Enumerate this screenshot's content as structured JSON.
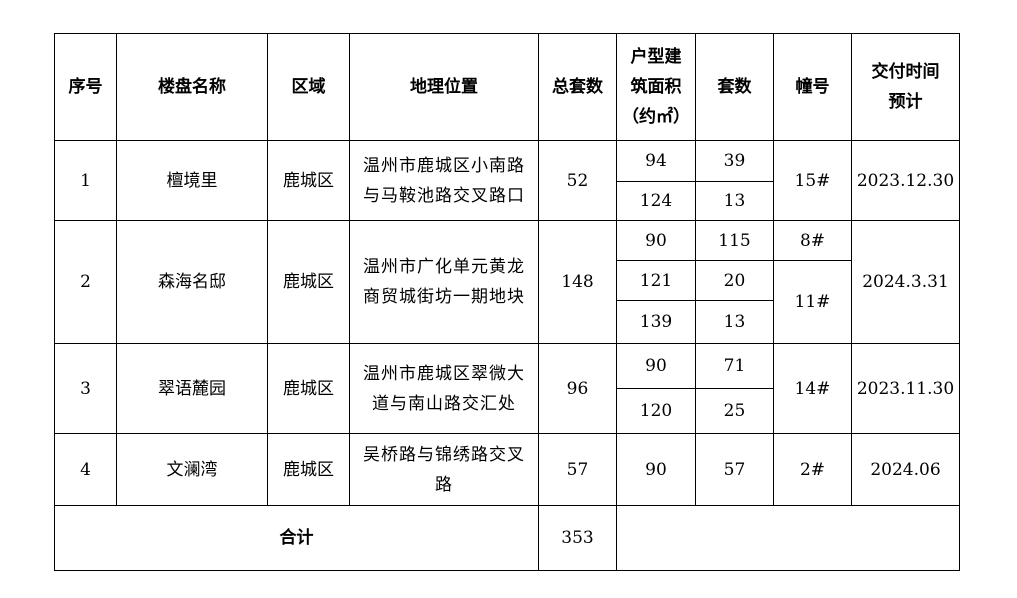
{
  "headers": {
    "index": "序号",
    "name": "楼盘名称",
    "district": "区域",
    "location": "地理位置",
    "total_units": "总套数",
    "area": [
      "户型建",
      "筑面积",
      "（约㎡）"
    ],
    "units": "套数",
    "building": "幢号",
    "delivery": [
      "交付时间",
      "预计"
    ]
  },
  "rows": [
    {
      "index": "1",
      "name": "檀境里",
      "district": "鹿城区",
      "location": [
        "温州市鹿城区小南路",
        "与马鞍池路交叉路口"
      ],
      "total_units": "52",
      "types": [
        {
          "area": "94",
          "units": "39"
        },
        {
          "area": "124",
          "units": "13"
        }
      ],
      "buildings": [
        "15#"
      ],
      "delivery": "2023.12.30"
    },
    {
      "index": "2",
      "name": "森海名邸",
      "district": "鹿城区",
      "location": [
        "温州市广化单元黄龙",
        "商贸城街坊一期地块"
      ],
      "total_units": "148",
      "types": [
        {
          "area": "90",
          "units": "115"
        },
        {
          "area": "121",
          "units": "20"
        },
        {
          "area": "139",
          "units": "13"
        }
      ],
      "buildings": [
        "8#",
        "11#"
      ],
      "delivery": "2024.3.31"
    },
    {
      "index": "3",
      "name": "翠语麓园",
      "district": "鹿城区",
      "location": [
        "温州市鹿城区翠微大",
        "道与南山路交汇处"
      ],
      "total_units": "96",
      "types": [
        {
          "area": "90",
          "units": "71"
        },
        {
          "area": "120",
          "units": "25"
        }
      ],
      "buildings": [
        "14#"
      ],
      "delivery": "2023.11.30"
    },
    {
      "index": "4",
      "name": "文澜湾",
      "district": "鹿城区",
      "location": [
        "吴桥路与锦绣路交叉",
        "路"
      ],
      "total_units": "57",
      "types": [
        {
          "area": "90",
          "units": "57"
        }
      ],
      "buildings": [
        "2#"
      ],
      "delivery": "2024.06"
    }
  ],
  "total": {
    "label": "合计",
    "value": "353"
  }
}
